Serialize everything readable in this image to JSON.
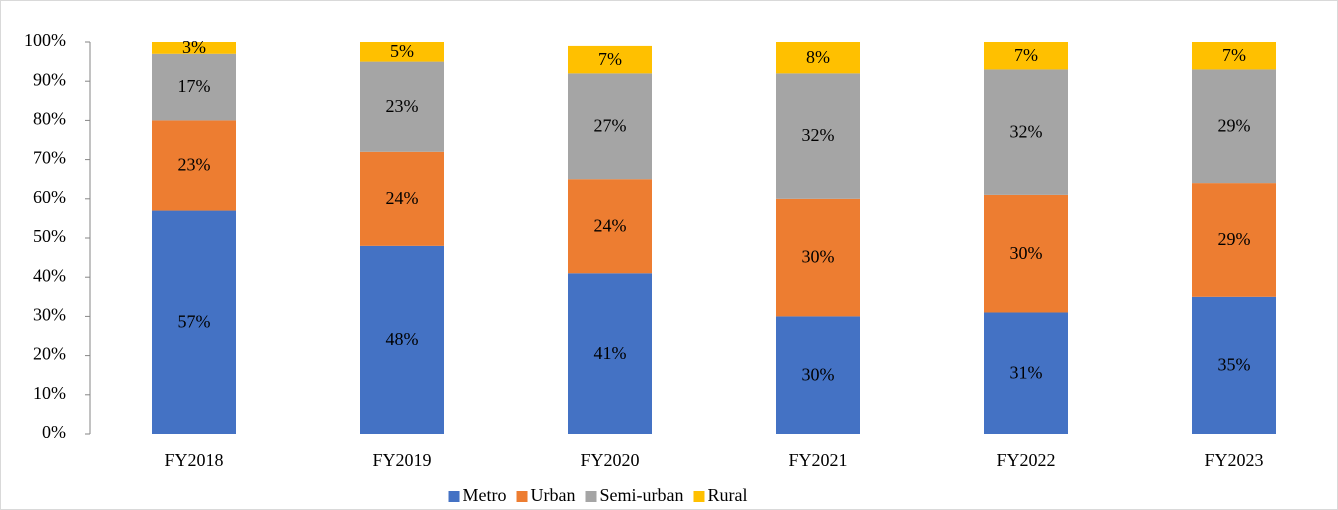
{
  "chart_data": {
    "type": "stacked_bar_100",
    "categories": [
      "FY2018",
      "FY2019",
      "FY2020",
      "FY2021",
      "FY2022",
      "FY2023"
    ],
    "series": [
      {
        "name": "Metro",
        "color": "#4472c4",
        "values": [
          57,
          48,
          41,
          30,
          31,
          35
        ],
        "value_labels": [
          "57%",
          "48%",
          "41%",
          "30%",
          "31%",
          "35%"
        ]
      },
      {
        "name": "Urban",
        "color": "#ed7d31",
        "values": [
          23,
          24,
          24,
          30,
          30,
          29
        ],
        "value_labels": [
          "23%",
          "24%",
          "24%",
          "30%",
          "30%",
          "29%"
        ]
      },
      {
        "name": "Semi-urban",
        "color": "#a5a5a5",
        "values": [
          17,
          23,
          27,
          32,
          32,
          29
        ],
        "value_labels": [
          "17%",
          "23%",
          "27%",
          "32%",
          "32%",
          "29%"
        ]
      },
      {
        "name": "Rural",
        "color": "#ffc000",
        "values": [
          3,
          5,
          7,
          8,
          7,
          7
        ],
        "value_labels": [
          "3%",
          "5%",
          "7%",
          "8%",
          "7%",
          "7%"
        ]
      }
    ],
    "ylim": [
      0,
      100
    ],
    "yticks": [
      {
        "value": 0,
        "label": "0%"
      },
      {
        "value": 10,
        "label": "10%"
      },
      {
        "value": 20,
        "label": "20%"
      },
      {
        "value": 30,
        "label": "30%"
      },
      {
        "value": 40,
        "label": "40%"
      },
      {
        "value": 50,
        "label": "50%"
      },
      {
        "value": 60,
        "label": "60%"
      },
      {
        "value": 70,
        "label": "70%"
      },
      {
        "value": 80,
        "label": "80%"
      },
      {
        "value": 90,
        "label": "90%"
      },
      {
        "value": 100,
        "label": "100%"
      }
    ],
    "legend": "bottom"
  }
}
